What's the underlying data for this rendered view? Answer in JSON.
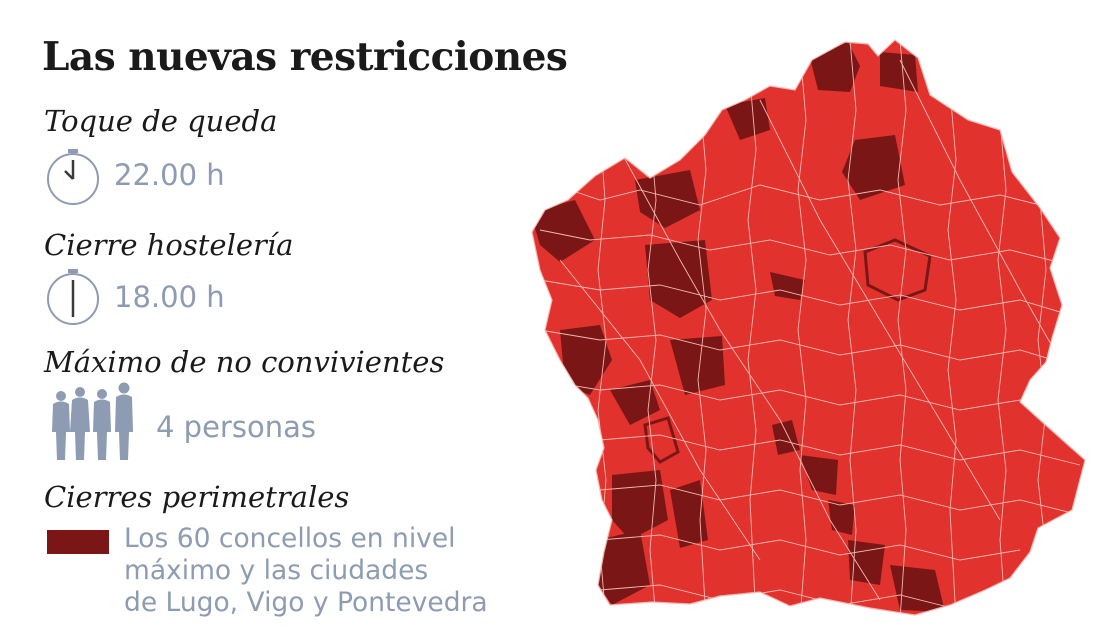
{
  "title": "Las nuevas restricciones",
  "sections": {
    "curfew": {
      "heading": "Toque de queda",
      "value": "22.00 h",
      "icon": "clock-icon"
    },
    "hospitality": {
      "heading": "Cierre hostelería",
      "value": "18.00 h",
      "icon": "clock-icon"
    },
    "gatherings": {
      "heading": "Máximo de no convivientes",
      "value": "4 personas",
      "icon": "people-icon"
    },
    "perimeter": {
      "heading": "Cierres perimetrales",
      "legend_lines": [
        "Los 60 concellos en nivel",
        "máximo y las ciudades",
        "de Lugo, Vigo y Pontevedra"
      ]
    }
  },
  "colors": {
    "base_region": "#e1322d",
    "highlight_region": "#7a1716",
    "border": "#f4b7b2",
    "text_muted": "#8d9bb3",
    "icon": "#8d9bb3"
  }
}
